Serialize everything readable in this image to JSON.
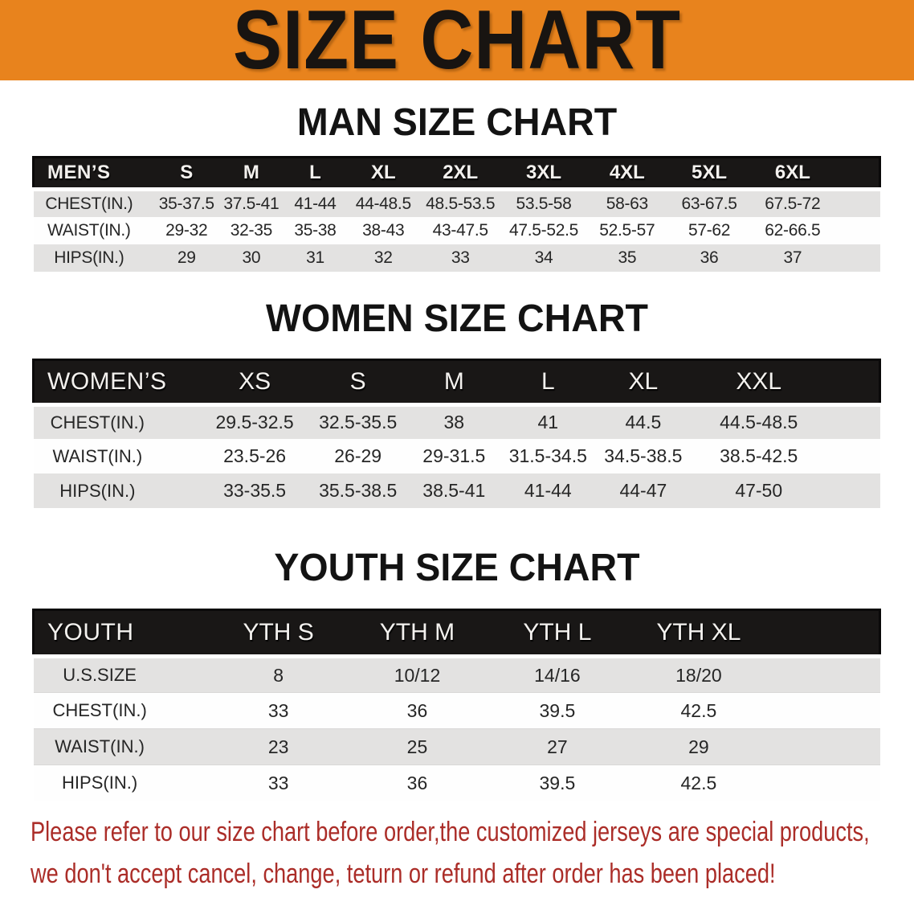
{
  "banner": {
    "title": "SIZE CHART",
    "bg_color": "#e8831d",
    "text_color": "#181411"
  },
  "sections": [
    {
      "heading": "MAN SIZE CHART",
      "table": {
        "header_label": "MEN’S",
        "columns": [
          "S",
          "M",
          "L",
          "XL",
          "2XL",
          "3XL",
          "4XL",
          "5XL",
          "6XL"
        ],
        "rows": [
          {
            "label": "CHEST(IN.)",
            "values": [
              "35-37.5",
              "37.5-41",
              "41-44",
              "44-48.5",
              "48.5-53.5",
              "53.5-58",
              "58-63",
              "63-67.5",
              "67.5-72"
            ]
          },
          {
            "label": "WAIST(IN.)",
            "values": [
              "29-32",
              "32-35",
              "35-38",
              "38-43",
              "43-47.5",
              "47.5-52.5",
              "52.5-57",
              "57-62",
              "62-66.5"
            ]
          },
          {
            "label": "HIPS(IN.)",
            "values": [
              "29",
              "30",
              "31",
              "32",
              "33",
              "34",
              "35",
              "36",
              "37"
            ]
          }
        ]
      }
    },
    {
      "heading": "WOMEN SIZE CHART",
      "table": {
        "header_label": "WOMEN’S",
        "columns": [
          "XS",
          "S",
          "M",
          "L",
          "XL",
          "XXL"
        ],
        "rows": [
          {
            "label": "CHEST(IN.)",
            "values": [
              "29.5-32.5",
              "32.5-35.5",
              "38",
              "41",
              "44.5",
              "44.5-48.5"
            ]
          },
          {
            "label": "WAIST(IN.)",
            "values": [
              "23.5-26",
              "26-29",
              "29-31.5",
              "31.5-34.5",
              "34.5-38.5",
              "38.5-42.5"
            ]
          },
          {
            "label": "HIPS(IN.)",
            "values": [
              "33-35.5",
              "35.5-38.5",
              "38.5-41",
              "41-44",
              "44-47",
              "47-50"
            ]
          }
        ]
      }
    },
    {
      "heading": "YOUTH SIZE CHART",
      "table": {
        "header_label": "YOUTH",
        "columns": [
          "YTH S",
          "YTH M",
          "YTH L",
          "YTH XL"
        ],
        "rows": [
          {
            "label": "U.S.SIZE",
            "values": [
              "8",
              "10/12",
              "14/16",
              "18/20"
            ]
          },
          {
            "label": "CHEST(IN.)",
            "values": [
              "33",
              "36",
              "39.5",
              "42.5"
            ]
          },
          {
            "label": "WAIST(IN.)",
            "values": [
              "23",
              "25",
              "27",
              "29"
            ]
          },
          {
            "label": "HIPS(IN.)",
            "values": [
              "33",
              "36",
              "39.5",
              "42.5"
            ]
          }
        ]
      }
    }
  ],
  "disclaimer": {
    "line1": "Please refer to our size chart before order,the customized jerseys are special products,",
    "line2": "we don't accept cancel, change, teturn or refund after order has been placed!",
    "text_color": "#ab2d28"
  },
  "table_stripe_colors": {
    "gray": "#e3e2e1",
    "white": "#fefefe",
    "header": "#191716"
  }
}
